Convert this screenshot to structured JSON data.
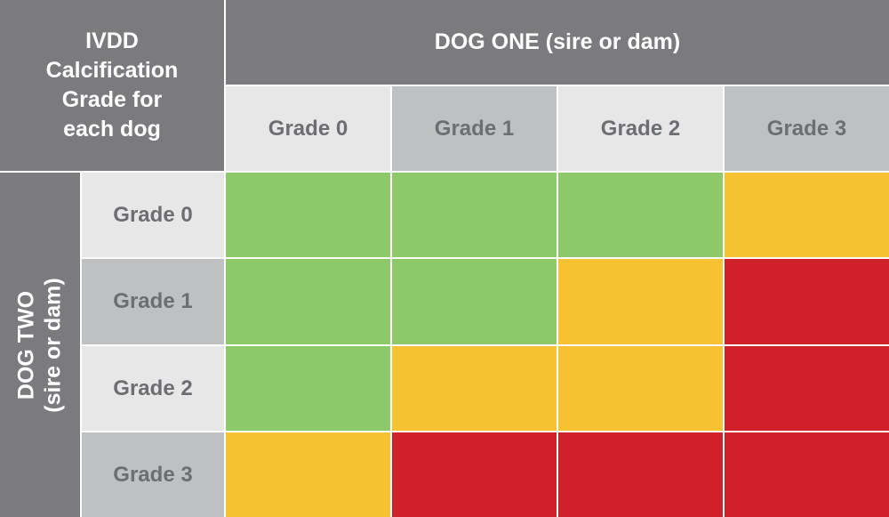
{
  "corner": "IVDD Calcification Grade for each dog",
  "columns": {
    "title": "DOG ONE (sire or dam)",
    "labels": [
      "Grade 0",
      "Grade 1",
      "Grade 2",
      "Grade 3"
    ]
  },
  "rows": {
    "title": "DOG TWO",
    "subtitle": "(sire or dam)",
    "labels": [
      "Grade 0",
      "Grade 1",
      "Grade 2",
      "Grade 3"
    ]
  }
}
